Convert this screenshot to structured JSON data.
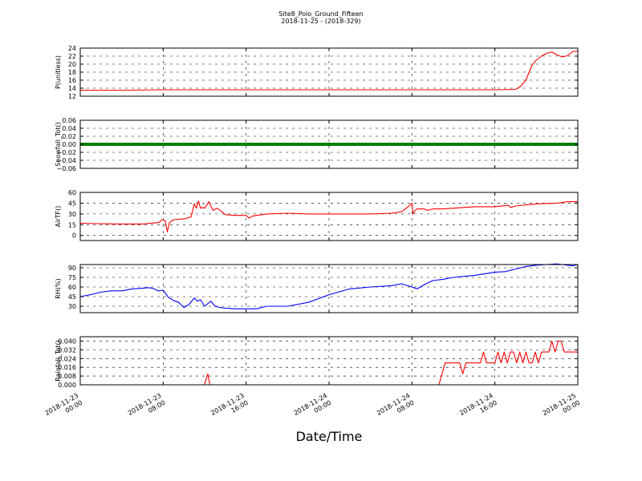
{
  "figure": {
    "title": "Site8_Polo_Ground_Fifteen",
    "subtitle": "2018-11-25 - (2018-329)",
    "xlabel": "Date/Time"
  },
  "x_ticks": [
    {
      "t": 0,
      "line1": "2018-11-23",
      "line2": "00:00"
    },
    {
      "t": 8,
      "line1": "2018-11-23",
      "line2": "08:00"
    },
    {
      "t": 16,
      "line1": "2018-11-23",
      "line2": "16:00"
    },
    {
      "t": 24,
      "line1": "2018-11-24",
      "line2": "00:00"
    },
    {
      "t": 32,
      "line1": "2018-11-24",
      "line2": "08:00"
    },
    {
      "t": 40,
      "line1": "2018-11-24",
      "line2": "16:00"
    },
    {
      "t": 48,
      "line1": "2018-11-25",
      "line2": "00:00"
    }
  ],
  "chart_data": [
    {
      "type": "line",
      "ylabel": "P(unitless)",
      "ylim": [
        12,
        24
      ],
      "yticks": [
        "24",
        "22",
        "20",
        "18",
        "16",
        "14",
        "12"
      ],
      "ytick_values": [
        24,
        22,
        20,
        18,
        16,
        14,
        12
      ],
      "grid": true,
      "x_range_hours": [
        0,
        48
      ],
      "x": [
        0,
        4,
        8,
        12,
        16,
        20,
        24,
        28,
        32,
        36,
        40,
        42,
        42.5,
        43,
        43.3,
        43.6,
        44,
        44.5,
        45,
        45.5,
        46,
        46.5,
        47,
        47.5,
        48
      ],
      "series": [
        {
          "color": "#ff0000",
          "values": [
            13.5,
            13.5,
            13.6,
            13.6,
            13.6,
            13.6,
            13.6,
            13.6,
            13.6,
            13.6,
            13.6,
            13.7,
            14.5,
            16,
            18,
            19.8,
            21,
            22,
            22.7,
            23,
            22.3,
            21.8,
            22.1,
            23.1,
            23.3
          ]
        }
      ]
    },
    {
      "type": "line",
      "ylabel": "Snowfall_Tot()",
      "ylim": [
        -0.06,
        0.06
      ],
      "yticks": [
        "0.06",
        "0.04",
        "0.02",
        "0.00",
        "−0.02",
        "−0.04",
        "−0.06"
      ],
      "ytick_values": [
        0.06,
        0.04,
        0.02,
        0.0,
        -0.02,
        -0.04,
        -0.06
      ],
      "grid": true,
      "x_range_hours": [
        0,
        48
      ],
      "x": [
        0,
        48
      ],
      "series": [
        {
          "color": "#008000",
          "thick": true,
          "values": [
            0,
            0
          ]
        }
      ]
    },
    {
      "type": "line",
      "ylabel": "AirTF()",
      "ylim": [
        -7,
        60
      ],
      "yticks": [
        "60",
        "45",
        "30",
        "15",
        "0"
      ],
      "ytick_values": [
        60,
        45,
        30,
        15,
        0
      ],
      "grid": true,
      "x_range_hours": [
        0,
        48
      ],
      "x": [
        0,
        2,
        4,
        6,
        7.6,
        7.8,
        8,
        8.2,
        8.4,
        8.6,
        9,
        10,
        10.5,
        10.7,
        11,
        11.2,
        11.4,
        11.6,
        11.8,
        12,
        12.4,
        12.8,
        13.2,
        13.6,
        14,
        15,
        16,
        16.3,
        16.6,
        17,
        18,
        20,
        22,
        24,
        26,
        28,
        30,
        31,
        31.8,
        32,
        32.1,
        32.3,
        32.5,
        33.2,
        33.5,
        34,
        35,
        36,
        38,
        40,
        41.3,
        41.5,
        42,
        44,
        46,
        47,
        48
      ],
      "series": [
        {
          "color": "#ff0000",
          "values": [
            17,
            16.5,
            16,
            16,
            18,
            21,
            22,
            20,
            5,
            18,
            22,
            23,
            25,
            26,
            44,
            38,
            48,
            38,
            39,
            38,
            47,
            35,
            38,
            34,
            29,
            28,
            28,
            24,
            27,
            28,
            30,
            31,
            30,
            30,
            30,
            30,
            31,
            33,
            42,
            45,
            30,
            35,
            37,
            37,
            35,
            37,
            37,
            38,
            40,
            40,
            42,
            39,
            41,
            44,
            45,
            47,
            47
          ]
        }
      ]
    },
    {
      "type": "line",
      "ylabel": "RH(%)",
      "ylim": [
        20,
        95
      ],
      "yticks": [
        "90",
        "75",
        "60",
        "45",
        "30"
      ],
      "ytick_values": [
        90,
        75,
        60,
        45,
        30
      ],
      "grid": true,
      "x_range_hours": [
        0,
        48
      ],
      "x": [
        0,
        1,
        2,
        3,
        4,
        5,
        6,
        6.5,
        7,
        7.5,
        8,
        8.5,
        9,
        9.5,
        10,
        10.5,
        11,
        11.3,
        11.6,
        12,
        12.3,
        12.6,
        13,
        13.5,
        14,
        15,
        16,
        17,
        18,
        20,
        22,
        24,
        26,
        28,
        30,
        31,
        32,
        32.5,
        33,
        34,
        35,
        36,
        38,
        40,
        41,
        42,
        43,
        44,
        45,
        46,
        46.5,
        47,
        47.5,
        48
      ],
      "series": [
        {
          "color": "#0000ff",
          "values": [
            45,
            48,
            52,
            54,
            54,
            57,
            58,
            59,
            58,
            54,
            55,
            44,
            39,
            36,
            28,
            33,
            43,
            38,
            40,
            30,
            34,
            38,
            30,
            28,
            27,
            26,
            26,
            26,
            30,
            30,
            36,
            48,
            57,
            60,
            62,
            65,
            60,
            57,
            62,
            70,
            72,
            75,
            78,
            83,
            84,
            88,
            92,
            94,
            95,
            96,
            95,
            94,
            93,
            95
          ]
        }
      ]
    },
    {
      "type": "line",
      "ylabel": "Rainfall_Tot()",
      "ylim": [
        0,
        0.044
      ],
      "yticks": [
        "0.040",
        "0.032",
        "0.024",
        "0.016",
        "0.008",
        "0.000"
      ],
      "ytick_values": [
        0.04,
        0.032,
        0.024,
        0.016,
        0.008,
        0.0
      ],
      "grid": true,
      "x_range_hours": [
        0,
        48
      ],
      "x": [
        0,
        12,
        12.1,
        12.3,
        12.5,
        34.6,
        35.2,
        36.6,
        36.9,
        37.2,
        38.6,
        38.9,
        39.2,
        39.5,
        40.0,
        40.3,
        40.6,
        40.9,
        41.2,
        41.5,
        41.8,
        42.1,
        42.4,
        42.7,
        43.0,
        43.3,
        43.6,
        43.9,
        44.2,
        44.5,
        45.2,
        45.5,
        45.8,
        46.1,
        46.4,
        46.7,
        48
      ],
      "series": [
        {
          "color": "#ff0000",
          "values": [
            0,
            0,
            0.004,
            0.01,
            0,
            0,
            0.02,
            0.02,
            0.01,
            0.02,
            0.02,
            0.03,
            0.02,
            0.02,
            0.02,
            0.03,
            0.02,
            0.03,
            0.02,
            0.03,
            0.03,
            0.02,
            0.03,
            0.02,
            0.03,
            0.02,
            0.02,
            0.03,
            0.02,
            0.03,
            0.03,
            0.04,
            0.03,
            0.04,
            0.04,
            0.03,
            0.03
          ]
        }
      ]
    }
  ]
}
